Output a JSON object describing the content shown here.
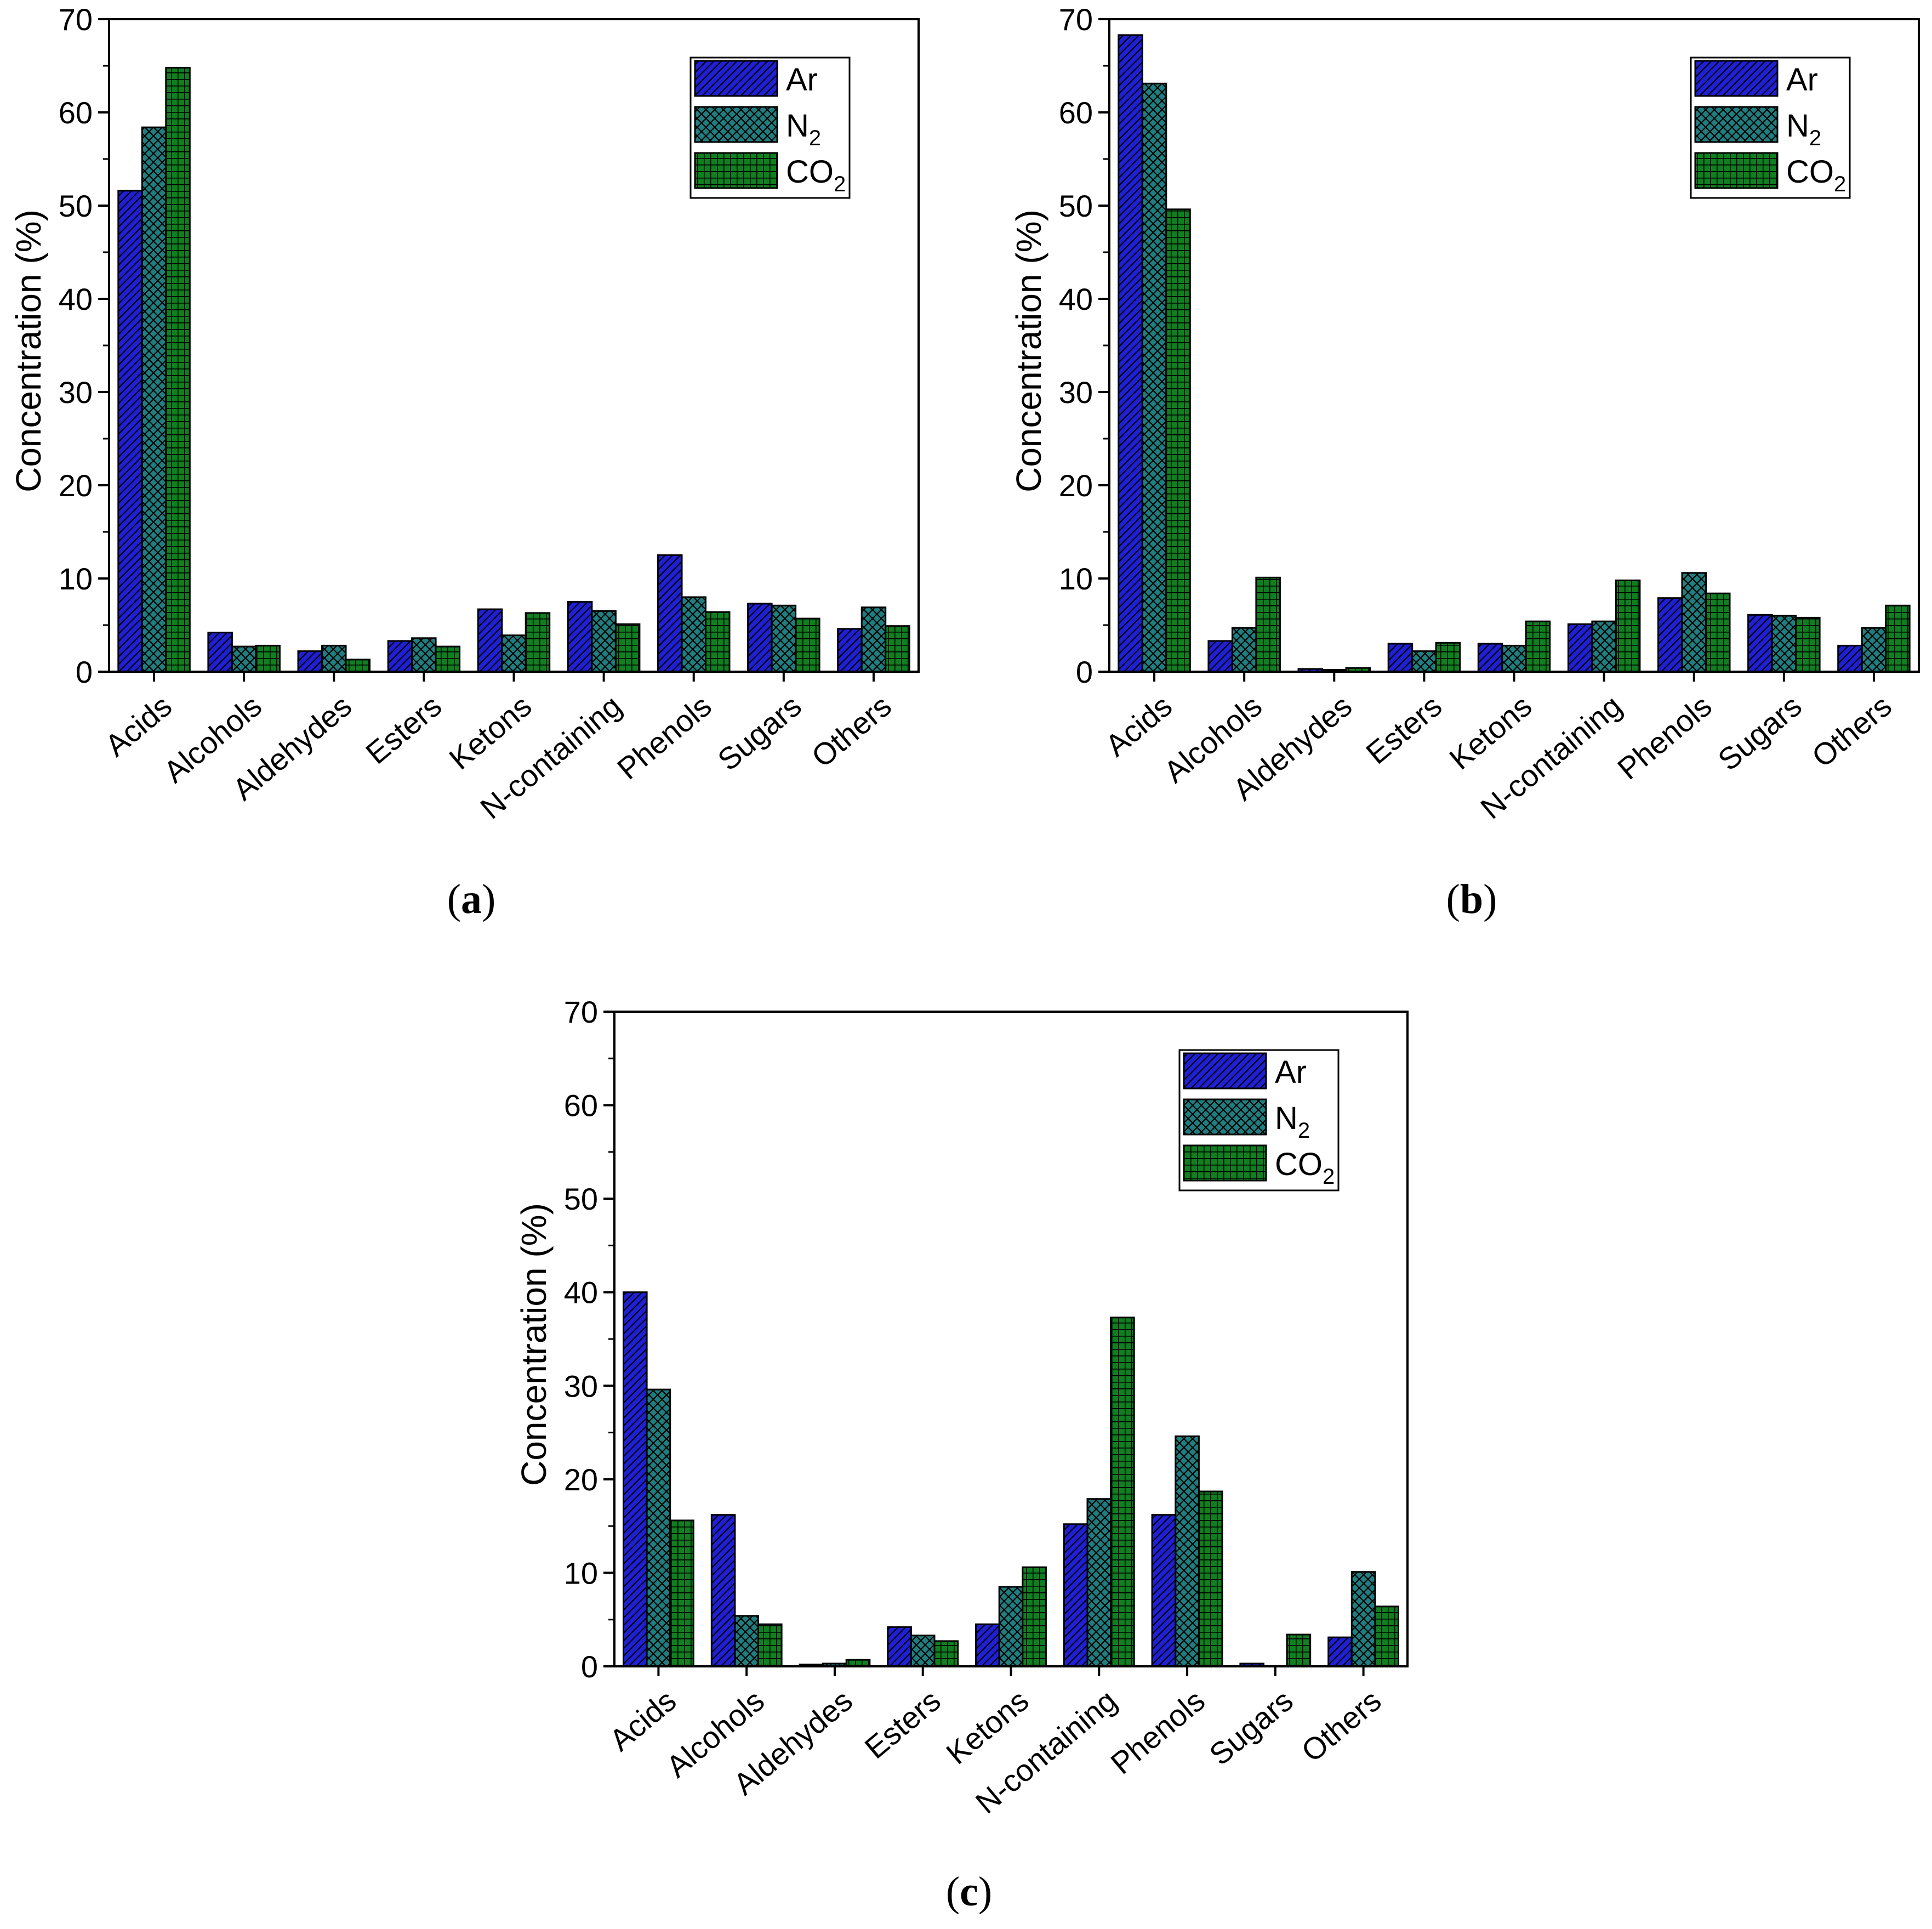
{
  "figure": {
    "panel_labels": [
      "a",
      "b",
      "c"
    ]
  },
  "colors": {
    "Ar": "#1f1fd6",
    "N2": "#1f7f80",
    "CO2": "#0f7f1f",
    "axis": "#000000"
  },
  "chart_data": [
    {
      "type": "bar",
      "panel": "a",
      "categories": [
        "Acids",
        "Alcohols",
        "Aldehydes",
        "Esters",
        "Ketons",
        "N-containing",
        "Phenols",
        "Sugars",
        "Others"
      ],
      "series": [
        {
          "name": "Ar",
          "values": [
            51.6,
            4.2,
            2.2,
            3.3,
            6.7,
            7.5,
            12.5,
            7.3,
            4.6
          ]
        },
        {
          "name": "N2",
          "values": [
            58.4,
            2.7,
            2.8,
            3.6,
            3.9,
            6.5,
            8.0,
            7.1,
            6.9
          ]
        },
        {
          "name": "CO2",
          "values": [
            64.8,
            2.8,
            1.3,
            2.7,
            6.3,
            5.1,
            6.4,
            5.7,
            4.9
          ]
        }
      ],
      "legend": [
        {
          "key": "Ar",
          "base": "Ar",
          "sub": ""
        },
        {
          "key": "N2",
          "base": "N",
          "sub": "2"
        },
        {
          "key": "CO2",
          "base": "CO",
          "sub": "2"
        }
      ],
      "legend_position": "top-right",
      "title": "",
      "xlabel": "",
      "ylabel": "Concentration (%)",
      "ylim": [
        0,
        70
      ],
      "yticks": [
        0,
        10,
        20,
        30,
        40,
        50,
        60,
        70
      ],
      "grid": false,
      "caption": "(a)"
    },
    {
      "type": "bar",
      "panel": "b",
      "categories": [
        "Acids",
        "Alcohols",
        "Aldehydes",
        "Esters",
        "Ketons",
        "N-containing",
        "Phenols",
        "Sugars",
        "Others"
      ],
      "series": [
        {
          "name": "Ar",
          "values": [
            68.3,
            3.3,
            0.3,
            3.0,
            3.0,
            5.1,
            7.9,
            6.1,
            2.8
          ]
        },
        {
          "name": "N2",
          "values": [
            63.1,
            4.7,
            0.2,
            2.2,
            2.8,
            5.4,
            10.6,
            6.0,
            4.7
          ]
        },
        {
          "name": "CO2",
          "values": [
            49.6,
            10.1,
            0.4,
            3.1,
            5.4,
            9.8,
            8.4,
            5.8,
            7.1
          ]
        }
      ],
      "legend": [
        {
          "key": "Ar",
          "base": "Ar",
          "sub": ""
        },
        {
          "key": "N2",
          "base": "N",
          "sub": "2"
        },
        {
          "key": "CO2",
          "base": "CO",
          "sub": "2"
        }
      ],
      "legend_position": "top-right",
      "title": "",
      "xlabel": "",
      "ylabel": "Concentration (%)",
      "ylim": [
        0,
        70
      ],
      "yticks": [
        0,
        10,
        20,
        30,
        40,
        50,
        60,
        70
      ],
      "grid": false,
      "caption": "(b)"
    },
    {
      "type": "bar",
      "panel": "c",
      "categories": [
        "Acids",
        "Alcohols",
        "Aldehydes",
        "Esters",
        "Ketons",
        "N-containing",
        "Phenols",
        "Sugars",
        "Others"
      ],
      "series": [
        {
          "name": "Ar",
          "values": [
            40.0,
            16.2,
            0.2,
            4.2,
            4.5,
            15.2,
            16.2,
            0.3,
            3.1
          ]
        },
        {
          "name": "N2",
          "values": [
            29.6,
            5.4,
            0.3,
            3.3,
            8.5,
            17.9,
            24.6,
            0.0,
            10.1
          ]
        },
        {
          "name": "CO2",
          "values": [
            15.6,
            4.5,
            0.7,
            2.7,
            10.6,
            37.3,
            18.7,
            3.4,
            6.4
          ]
        }
      ],
      "legend": [
        {
          "key": "Ar",
          "base": "Ar",
          "sub": ""
        },
        {
          "key": "N2",
          "base": "N",
          "sub": "2"
        },
        {
          "key": "CO2",
          "base": "CO",
          "sub": "2"
        }
      ],
      "legend_position": "top-right",
      "title": "",
      "xlabel": "",
      "ylabel": "Concentration (%)",
      "ylim": [
        0,
        70
      ],
      "yticks": [
        0,
        10,
        20,
        30,
        40,
        50,
        60,
        70
      ],
      "grid": false,
      "caption": "(c)"
    }
  ]
}
